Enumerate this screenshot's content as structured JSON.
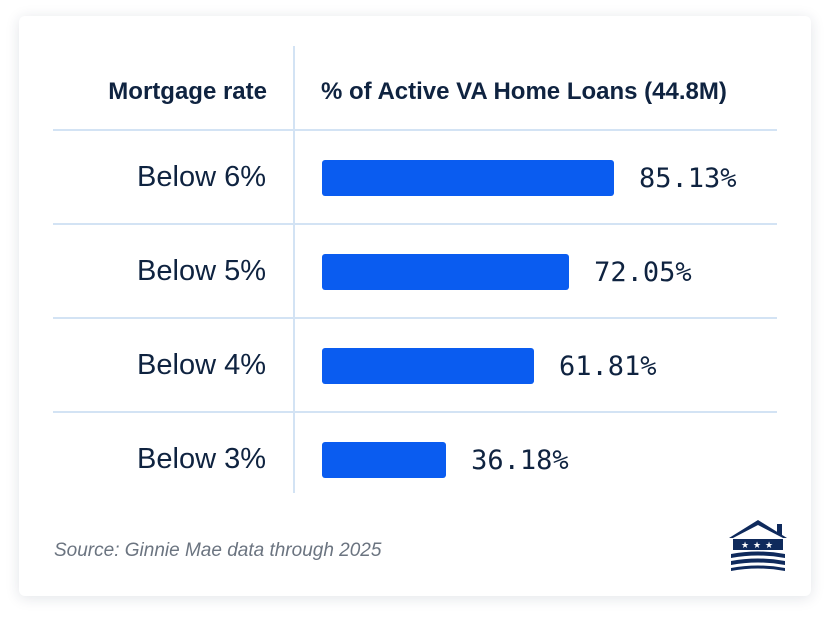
{
  "chart_data": {
    "type": "bar",
    "orientation": "horizontal",
    "column_headers": {
      "category": "Mortgage rate",
      "value": "% of Active VA Home Loans (44.8M)"
    },
    "categories": [
      "Below 6%",
      "Below 5%",
      "Below 4%",
      "Below 3%"
    ],
    "values": [
      85.13,
      72.05,
      61.81,
      36.18
    ],
    "value_labels": [
      "85.13%",
      "72.05%",
      "61.81%",
      "36.18%"
    ],
    "unit": "%",
    "xlim": [
      0,
      100
    ],
    "bar_color": "#0a5cf0",
    "grid": false,
    "legend": "none"
  },
  "footer": {
    "source": "Source: Ginnie Mae data through 2025"
  },
  "branding": {
    "logo_icon": "house-stars-logo-icon",
    "logo_color": "#0f2a5c"
  }
}
